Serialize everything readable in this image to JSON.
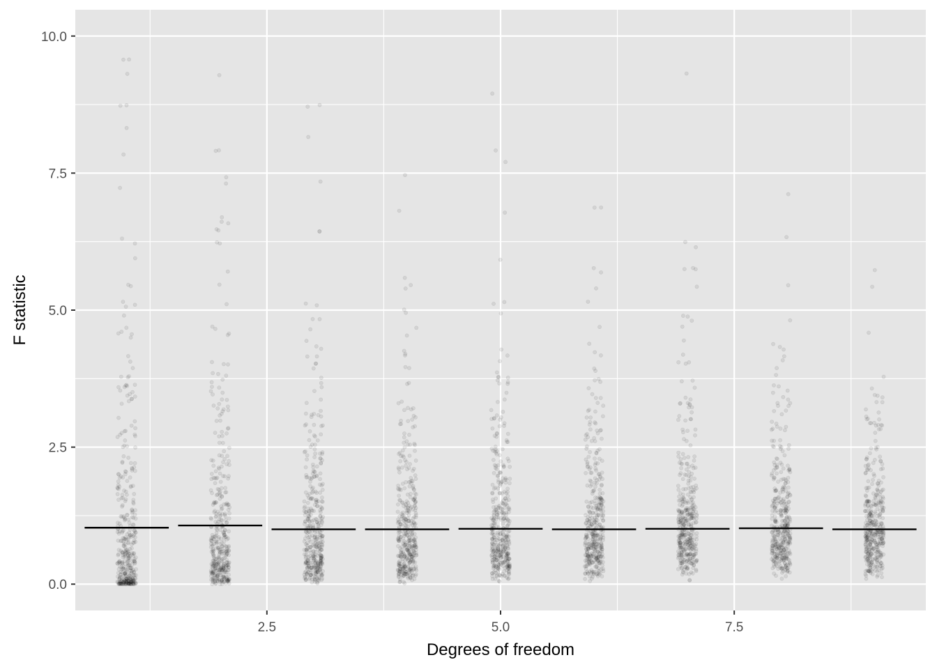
{
  "chart_data": {
    "type": "scatter",
    "title": "",
    "xlabel": "Degrees of freedom",
    "ylabel": "F statistic",
    "xlim": [
      0.45,
      9.55
    ],
    "ylim": [
      -0.48,
      10.48
    ],
    "x_ticks": [
      {
        "value": 2.5,
        "label": "2.5"
      },
      {
        "value": 5.0,
        "label": "5.0"
      },
      {
        "value": 7.5,
        "label": "7.5"
      }
    ],
    "y_ticks": [
      {
        "value": 0.0,
        "label": "0.0"
      },
      {
        "value": 2.5,
        "label": "2.5"
      },
      {
        "value": 5.0,
        "label": "5.0"
      },
      {
        "value": 7.5,
        "label": "7.5"
      },
      {
        "value": 10.0,
        "label": "10.0"
      }
    ],
    "grid": true,
    "legend": "none",
    "background": "#e5e5e5",
    "grid_color": "#ffffff",
    "point_color": "#000000",
    "point_alpha": 0.08,
    "x_jitter": 0.1,
    "points_per_group": 400,
    "groups": [
      {
        "df": 1,
        "mean_line": 1.03
      },
      {
        "df": 2,
        "mean_line": 1.07
      },
      {
        "df": 3,
        "mean_line": 1.0
      },
      {
        "df": 4,
        "mean_line": 1.0
      },
      {
        "df": 5,
        "mean_line": 1.01
      },
      {
        "df": 6,
        "mean_line": 1.0
      },
      {
        "df": 7,
        "mean_line": 1.01
      },
      {
        "df": 8,
        "mean_line": 1.02
      },
      {
        "df": 9,
        "mean_line": 1.0
      }
    ],
    "mean_line_halfwidth": 0.45,
    "mean_line_color": "#000000"
  }
}
